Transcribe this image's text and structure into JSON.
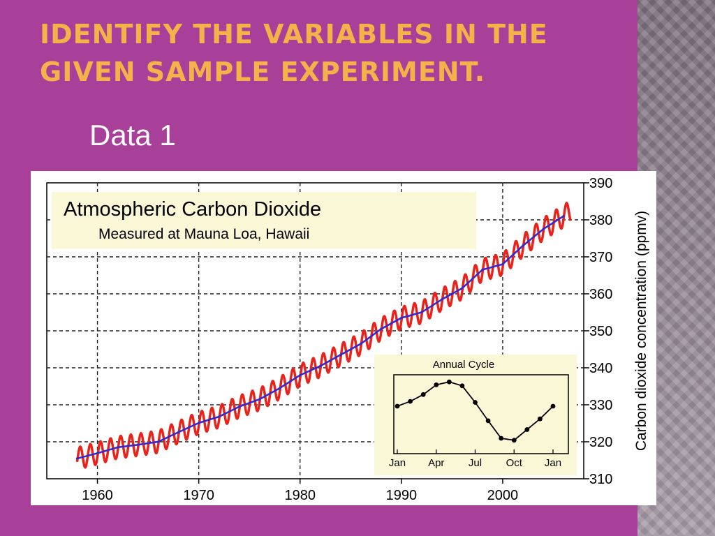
{
  "slide": {
    "title": "Identify the variables in the given sample experiment.",
    "subtitle": "Data 1"
  },
  "chart_data": [
    {
      "type": "line",
      "title": "Atmospheric Carbon Dioxide",
      "subtitle": "Measured at Mauna Loa, Hawaii",
      "xlabel": "",
      "ylabel": "Carbon dioxide concentration (ppmv)",
      "xlim": [
        1955,
        2008
      ],
      "ylim": [
        310,
        390
      ],
      "x_ticks": [
        1960,
        1970,
        1980,
        1990,
        2000
      ],
      "y_ticks": [
        310,
        320,
        330,
        340,
        350,
        360,
        370,
        380,
        390
      ],
      "grid": true,
      "series": [
        {
          "color": "#e8231c",
          "style": "monthly",
          "seasonal_amplitude": 3,
          "x": [
            1958,
            1960,
            1962,
            1964,
            1966,
            1968,
            1970,
            1972,
            1974,
            1976,
            1978,
            1980,
            1982,
            1984,
            1986,
            1988,
            1990,
            1992,
            1994,
            1996,
            1998,
            2000,
            2002,
            2004,
            2006
          ],
          "y": [
            315.5,
            316.9,
            318.5,
            319.2,
            320.0,
            322.6,
            325.1,
            326.8,
            329.5,
            331.5,
            334.5,
            338.0,
            340.5,
            343.5,
            346.5,
            350.5,
            353.5,
            355.0,
            358.5,
            361.5,
            366.5,
            368.0,
            373.0,
            377.5,
            381.0
          ]
        },
        {
          "color": "#2a2ad6",
          "style": "smoothed",
          "x": [
            1958,
            1960,
            1962,
            1964,
            1966,
            1968,
            1970,
            1972,
            1974,
            1976,
            1978,
            1980,
            1982,
            1984,
            1986,
            1988,
            1990,
            1992,
            1994,
            1996,
            1998,
            2000,
            2002,
            2004,
            2006
          ],
          "y": [
            315.5,
            316.9,
            318.5,
            319.2,
            320.0,
            322.6,
            325.1,
            326.8,
            329.5,
            331.5,
            334.5,
            338.0,
            340.5,
            343.5,
            346.5,
            350.5,
            353.5,
            355.0,
            358.5,
            361.5,
            366.5,
            368.0,
            373.0,
            377.5,
            381.0
          ]
        }
      ]
    },
    {
      "type": "line",
      "title": "Annual Cycle",
      "categories": [
        "Jan",
        "Apr",
        "Jul",
        "Oct",
        "Jan"
      ],
      "x": [
        0,
        1,
        2,
        3,
        4,
        5,
        6,
        7,
        8,
        9,
        10,
        11,
        12
      ],
      "values": [
        0,
        0.5,
        1.2,
        2.2,
        2.5,
        2.1,
        0.4,
        -1.5,
        -3.3,
        -3.5,
        -2.4,
        -1.3,
        0
      ],
      "grid": false
    }
  ]
}
